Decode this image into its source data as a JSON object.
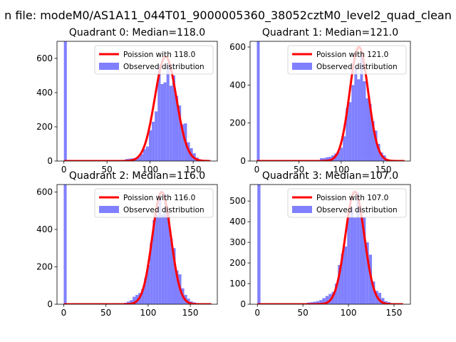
{
  "figure": {
    "suptitle": "n file: modeM0/AS1A11_044T01_9000005360_38052cztM0_level2_quad_clean"
  },
  "chart_data": [
    {
      "type": "bar",
      "title": "Quadrant 0: Median=118.0",
      "xlim": [
        -8,
        178
      ],
      "ylim": [
        0,
        700
      ],
      "xticks": [
        0,
        50,
        100,
        150
      ],
      "yticks": [
        0,
        200,
        400,
        600
      ],
      "grid": false,
      "legend_placement": "top-right",
      "legend": [
        "Poission with 118.0",
        "Observed distribution"
      ],
      "poisson_mean": 118.0,
      "fit_x_range": [
        0,
        170
      ],
      "fit_peak": 610,
      "fit_sigma": 12.5,
      "hist": {
        "bin_width": 3.4,
        "bins": [
          [
            0,
            700
          ],
          [
            68,
            4
          ],
          [
            71.4,
            12
          ],
          [
            74.8,
            14
          ],
          [
            78.2,
            16
          ],
          [
            81.6,
            18
          ],
          [
            85,
            22
          ],
          [
            88.4,
            40
          ],
          [
            91.8,
            70
          ],
          [
            95.2,
            85
          ],
          [
            98.6,
            180
          ],
          [
            102,
            230
          ],
          [
            105.4,
            290
          ],
          [
            108.8,
            560
          ],
          [
            112.2,
            450
          ],
          [
            115.6,
            460
          ],
          [
            119,
            560
          ],
          [
            122.4,
            440
          ],
          [
            125.8,
            500
          ],
          [
            129.2,
            380
          ],
          [
            132.6,
            325
          ],
          [
            136,
            215
          ],
          [
            139.4,
            220
          ],
          [
            142.8,
            110
          ],
          [
            146.2,
            75
          ],
          [
            149.6,
            45
          ],
          [
            153,
            20
          ],
          [
            156.4,
            10
          ]
        ]
      },
      "series": [
        {
          "name": "Poission with 118.0",
          "color": "#ff0000"
        },
        {
          "name": "Observed distribution",
          "color": "#8080ff"
        }
      ]
    },
    {
      "type": "bar",
      "title": "Quadrant 1: Median=121.0",
      "xlim": [
        -8,
        182
      ],
      "ylim": [
        0,
        630
      ],
      "xticks": [
        0,
        50,
        100,
        150
      ],
      "yticks": [
        0,
        200,
        400,
        600
      ],
      "grid": false,
      "legend_placement": "top-right",
      "legend": [
        "Poission with 121.0",
        "Observed distribution"
      ],
      "poisson_mean": 121.0,
      "fit_x_range": [
        0,
        175
      ],
      "fit_peak": 600,
      "fit_sigma": 11.0,
      "hist": {
        "bin_width": 3.4,
        "bins": [
          [
            0,
            630
          ],
          [
            74.8,
            15
          ],
          [
            78.2,
            15
          ],
          [
            81.6,
            20
          ],
          [
            85,
            22
          ],
          [
            88.4,
            30
          ],
          [
            91.8,
            40
          ],
          [
            95.2,
            50
          ],
          [
            98.6,
            70
          ],
          [
            102,
            130
          ],
          [
            105.4,
            280
          ],
          [
            108.8,
            310
          ],
          [
            112.2,
            400
          ],
          [
            115.6,
            490
          ],
          [
            119,
            430
          ],
          [
            122.4,
            560
          ],
          [
            125.8,
            420
          ],
          [
            129.2,
            330
          ],
          [
            132.6,
            300
          ],
          [
            136,
            210
          ],
          [
            139.4,
            160
          ],
          [
            142.8,
            90
          ],
          [
            146.2,
            45
          ],
          [
            149.6,
            30
          ],
          [
            153,
            10
          ]
        ]
      },
      "series": [
        {
          "name": "Poission with 121.0",
          "color": "#ff0000"
        },
        {
          "name": "Observed distribution",
          "color": "#8080ff"
        }
      ]
    },
    {
      "type": "bar",
      "title": "Quadrant 2: Median=116.0",
      "xlim": [
        -8,
        182
      ],
      "ylim": [
        0,
        640
      ],
      "xticks": [
        0,
        50,
        100,
        150
      ],
      "yticks": [
        0,
        200,
        400,
        600
      ],
      "grid": false,
      "legend_placement": "top-right",
      "legend": [
        "Poission with 116.0",
        "Observed distribution"
      ],
      "poisson_mean": 116.0,
      "fit_x_range": [
        0,
        175
      ],
      "fit_peak": 600,
      "fit_sigma": 11.0,
      "hist": {
        "bin_width": 3.4,
        "bins": [
          [
            0,
            640
          ],
          [
            68,
            4
          ],
          [
            71.4,
            8
          ],
          [
            74.8,
            14
          ],
          [
            78.2,
            22
          ],
          [
            81.6,
            40
          ],
          [
            85,
            50
          ],
          [
            88.4,
            60
          ],
          [
            91.8,
            80
          ],
          [
            95.2,
            140
          ],
          [
            98.6,
            210
          ],
          [
            102,
            330
          ],
          [
            105.4,
            450
          ],
          [
            108.8,
            480
          ],
          [
            112.2,
            580
          ],
          [
            115.6,
            480
          ],
          [
            119,
            590
          ],
          [
            122.4,
            490
          ],
          [
            125.8,
            350
          ],
          [
            129.2,
            300
          ],
          [
            132.6,
            180
          ],
          [
            136,
            160
          ],
          [
            139.4,
            85
          ],
          [
            142.8,
            50
          ],
          [
            146.2,
            30
          ],
          [
            149.6,
            15
          ],
          [
            153,
            10
          ]
        ]
      },
      "series": [
        {
          "name": "Poission with 116.0",
          "color": "#ff0000"
        },
        {
          "name": "Observed distribution",
          "color": "#8080ff"
        }
      ]
    },
    {
      "type": "bar",
      "title": "Quadrant 3: Median=107.0",
      "xlim": [
        -8,
        168
      ],
      "ylim": [
        0,
        580
      ],
      "xticks": [
        0,
        50,
        100,
        150
      ],
      "yticks": [
        0,
        100,
        200,
        300,
        400,
        500
      ],
      "grid": false,
      "legend_placement": "top-right",
      "legend": [
        "Poission with 107.0",
        "Observed distribution"
      ],
      "poisson_mean": 107.0,
      "fit_x_range": [
        0,
        160
      ],
      "fit_peak": 545,
      "fit_sigma": 10.5,
      "hist": {
        "bin_width": 3.4,
        "bins": [
          [
            0,
            580
          ],
          [
            47.6,
            4
          ],
          [
            51,
            5
          ],
          [
            54.4,
            8
          ],
          [
            57.8,
            10
          ],
          [
            61.2,
            12
          ],
          [
            64.6,
            15
          ],
          [
            68,
            20
          ],
          [
            71.4,
            30
          ],
          [
            74.8,
            40
          ],
          [
            78.2,
            50
          ],
          [
            81.6,
            60
          ],
          [
            85,
            100
          ],
          [
            88.4,
            190
          ],
          [
            91.8,
            245
          ],
          [
            95.2,
            280
          ],
          [
            98.6,
            420
          ],
          [
            102,
            470
          ],
          [
            105.4,
            420
          ],
          [
            108.8,
            540
          ],
          [
            112.2,
            420
          ],
          [
            115.6,
            420
          ],
          [
            119,
            300
          ],
          [
            122.4,
            240
          ],
          [
            125.8,
            110
          ],
          [
            129.2,
            65
          ],
          [
            132.6,
            55
          ],
          [
            136,
            30
          ],
          [
            139.4,
            15
          ],
          [
            142.8,
            10
          ]
        ]
      },
      "series": [
        {
          "name": "Poission with 107.0",
          "color": "#ff0000"
        },
        {
          "name": "Observed distribution",
          "color": "#8080ff"
        }
      ]
    }
  ]
}
